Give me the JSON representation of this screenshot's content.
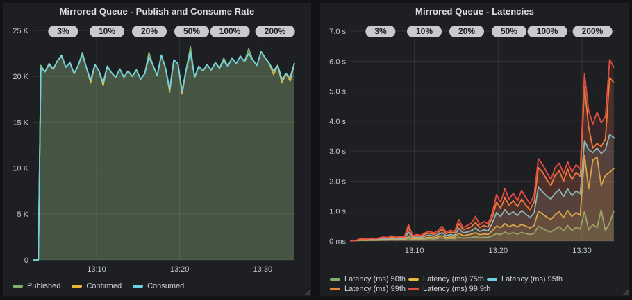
{
  "chart_data": [
    {
      "type": "area",
      "title": "Mirrored Queue - Publish and Consume Rate",
      "annotations": [
        "3%",
        "10%",
        "20%",
        "50%",
        "100%",
        "200%"
      ],
      "x_unit": "time of day (minutes after 13:00)",
      "y_unit": "messages per second",
      "xlim": [
        2.4,
        33.9
      ],
      "ylim": [
        0,
        25000
      ],
      "grid": true,
      "legend_position": "bottom",
      "xticks": [
        {
          "x": 10,
          "label": "13:10"
        },
        {
          "x": 20,
          "label": "13:20"
        },
        {
          "x": 30,
          "label": "13:30"
        }
      ],
      "yticks": [
        {
          "v": 0,
          "label": "0"
        },
        {
          "v": 5000,
          "label": "5 K"
        },
        {
          "v": 10000,
          "label": "10 K"
        },
        {
          "v": 15000,
          "label": "15 K"
        },
        {
          "v": 20000,
          "label": "20 K"
        },
        {
          "v": 25000,
          "label": "25 K"
        }
      ],
      "x": [
        2.4,
        3.0,
        3.3,
        3.8,
        4.3,
        4.8,
        5.3,
        5.8,
        6.3,
        6.8,
        7.3,
        7.8,
        8.3,
        8.8,
        9.3,
        9.8,
        10.3,
        10.8,
        11.3,
        11.8,
        12.3,
        12.8,
        13.3,
        13.8,
        14.3,
        14.8,
        15.3,
        15.8,
        16.3,
        16.8,
        17.3,
        17.8,
        18.3,
        18.8,
        19.3,
        19.8,
        20.3,
        20.8,
        21.3,
        21.8,
        22.3,
        22.8,
        23.3,
        23.8,
        24.3,
        24.8,
        25.3,
        25.8,
        26.3,
        26.8,
        27.3,
        27.8,
        28.3,
        28.8,
        29.3,
        29.8,
        30.3,
        30.8,
        31.3,
        31.8,
        32.3,
        32.8,
        33.3,
        33.8
      ],
      "series": [
        {
          "name": "Published",
          "color": "#7EB26D",
          "values": [
            0,
            0,
            21200,
            20500,
            21400,
            20800,
            21700,
            22300,
            21000,
            21500,
            20300,
            21200,
            22600,
            20900,
            19600,
            21300,
            20600,
            19300,
            21100,
            20400,
            19900,
            20800,
            19900,
            20600,
            20000,
            20700,
            19700,
            20300,
            22600,
            21200,
            20100,
            22300,
            20900,
            18600,
            21800,
            21400,
            18400,
            20800,
            23200,
            19900,
            21100,
            20600,
            21300,
            20700,
            21500,
            20900,
            22000,
            21100,
            22000,
            21400,
            22200,
            21600,
            23000,
            21800,
            21200,
            22700,
            22000,
            21400,
            20600,
            21200,
            19700,
            20300,
            19900,
            21400
          ]
        },
        {
          "name": "Confirmed",
          "color": "#EAB839",
          "values": [
            0,
            0,
            21000,
            20500,
            21300,
            20800,
            21700,
            22200,
            21000,
            21500,
            20300,
            21200,
            22400,
            20900,
            19300,
            21300,
            20600,
            19000,
            21100,
            20400,
            19900,
            20800,
            19900,
            20600,
            20000,
            20700,
            19700,
            20300,
            22100,
            21200,
            20100,
            22300,
            20900,
            18300,
            21800,
            21400,
            18100,
            20800,
            22600,
            19900,
            21100,
            20600,
            21300,
            20700,
            21500,
            20900,
            21700,
            21100,
            22000,
            21400,
            22200,
            21600,
            22500,
            21800,
            21200,
            22700,
            22000,
            21400,
            20200,
            21200,
            19300,
            20300,
            19500,
            21400
          ]
        },
        {
          "name": "Consumed",
          "color": "#6ED0E0",
          "values": [
            0,
            0,
            21000,
            20500,
            21400,
            20800,
            21700,
            22300,
            21000,
            21500,
            20300,
            21200,
            22400,
            20900,
            19600,
            21300,
            20600,
            19300,
            21100,
            20400,
            19900,
            20800,
            19900,
            20600,
            20000,
            20700,
            19700,
            20300,
            22100,
            21200,
            20100,
            22300,
            20900,
            18600,
            21800,
            21400,
            18400,
            20800,
            22600,
            19900,
            21100,
            20600,
            21300,
            20700,
            21500,
            20900,
            21700,
            21100,
            22000,
            21400,
            22200,
            21600,
            22500,
            21800,
            21200,
            22700,
            22000,
            21400,
            20600,
            21200,
            19700,
            20300,
            19900,
            21400
          ]
        }
      ]
    },
    {
      "type": "area",
      "title": "Mirrored Queue - Latencies",
      "annotations": [
        "3%",
        "10%",
        "20%",
        "50%",
        "100%",
        "200%"
      ],
      "x_unit": "time of day (minutes after 13:00)",
      "y_unit": "seconds",
      "xlim": [
        2.4,
        33.9
      ],
      "ylim": [
        0,
        7
      ],
      "grid": true,
      "legend_position": "bottom",
      "xticks": [
        {
          "x": 10,
          "label": "13:10"
        },
        {
          "x": 20,
          "label": "13:20"
        },
        {
          "x": 30,
          "label": "13:30"
        }
      ],
      "yticks": [
        {
          "v": 0,
          "label": "0 ms"
        },
        {
          "v": 1,
          "label": "1.0 s"
        },
        {
          "v": 2,
          "label": "2.0 s"
        },
        {
          "v": 3,
          "label": "3.0 s"
        },
        {
          "v": 4,
          "label": "4.0 s"
        },
        {
          "v": 5,
          "label": "5.0 s"
        },
        {
          "v": 6,
          "label": "6.0 s"
        },
        {
          "v": 7,
          "label": "7.0 s"
        }
      ],
      "x": [
        2.4,
        3.0,
        3.3,
        3.8,
        4.3,
        4.8,
        5.3,
        5.8,
        6.3,
        6.8,
        7.3,
        7.8,
        8.3,
        8.8,
        9.3,
        9.8,
        10.3,
        10.8,
        11.3,
        11.8,
        12.3,
        12.8,
        13.3,
        13.8,
        14.3,
        14.8,
        15.3,
        15.8,
        16.3,
        16.8,
        17.3,
        17.8,
        18.3,
        18.8,
        19.3,
        19.8,
        20.3,
        20.8,
        21.3,
        21.8,
        22.3,
        22.8,
        23.3,
        23.8,
        24.3,
        24.8,
        25.3,
        25.8,
        26.3,
        26.8,
        27.3,
        27.8,
        28.3,
        28.8,
        29.3,
        29.8,
        30.3,
        30.8,
        31.3,
        31.8,
        32.3,
        32.8,
        33.3,
        33.8
      ],
      "series": [
        {
          "name": "Latency (ms) 50th",
          "color": "#7EB26D",
          "values": [
            0.01,
            0.01,
            0.02,
            0.03,
            0.02,
            0.03,
            0.03,
            0.03,
            0.04,
            0.04,
            0.05,
            0.04,
            0.05,
            0.04,
            0.08,
            0.05,
            0.06,
            0.05,
            0.07,
            0.08,
            0.07,
            0.09,
            0.11,
            0.08,
            0.09,
            0.08,
            0.13,
            0.1,
            0.11,
            0.12,
            0.15,
            0.11,
            0.13,
            0.12,
            0.18,
            0.25,
            0.22,
            0.3,
            0.24,
            0.28,
            0.23,
            0.29,
            0.25,
            0.22,
            0.26,
            0.5,
            0.42,
            0.35,
            0.3,
            0.4,
            0.48,
            0.34,
            0.52,
            0.36,
            0.46,
            0.4,
            1.0,
            0.38,
            0.55,
            0.45,
            1.04,
            0.35,
            0.6,
            1.0
          ]
        },
        {
          "name": "Latency (ms) 75th",
          "color": "#EAB839",
          "values": [
            0.01,
            0.01,
            0.03,
            0.04,
            0.03,
            0.04,
            0.04,
            0.05,
            0.06,
            0.05,
            0.07,
            0.06,
            0.07,
            0.06,
            0.15,
            0.08,
            0.09,
            0.08,
            0.11,
            0.13,
            0.11,
            0.14,
            0.18,
            0.12,
            0.14,
            0.13,
            0.26,
            0.18,
            0.2,
            0.23,
            0.28,
            0.21,
            0.24,
            0.22,
            0.35,
            0.5,
            0.45,
            0.58,
            0.48,
            0.54,
            0.47,
            0.56,
            0.5,
            0.44,
            0.52,
            1.0,
            0.9,
            0.8,
            0.72,
            0.88,
            0.98,
            0.78,
            1.02,
            0.82,
            0.95,
            0.86,
            2.85,
            1.75,
            2.7,
            2.8,
            1.85,
            2.2,
            2.3,
            2.42
          ]
        },
        {
          "name": "Latency (ms) 95th",
          "color": "#6ED0E0",
          "values": [
            0.01,
            0.01,
            0.04,
            0.05,
            0.05,
            0.06,
            0.05,
            0.06,
            0.08,
            0.07,
            0.1,
            0.08,
            0.09,
            0.08,
            0.3,
            0.11,
            0.13,
            0.12,
            0.17,
            0.2,
            0.16,
            0.21,
            0.28,
            0.18,
            0.22,
            0.19,
            0.42,
            0.28,
            0.3,
            0.35,
            0.44,
            0.32,
            0.38,
            0.34,
            0.6,
            0.95,
            0.82,
            1.05,
            0.88,
            0.98,
            0.85,
            1.02,
            0.9,
            0.78,
            0.95,
            1.8,
            1.65,
            1.5,
            1.4,
            1.6,
            1.72,
            1.48,
            1.75,
            1.52,
            1.68,
            1.58,
            3.35,
            3.05,
            2.95,
            3.1,
            2.92,
            3.05,
            3.55,
            3.45
          ]
        },
        {
          "name": "Latency (ms) 99th",
          "color": "#EF843C",
          "values": [
            0.01,
            0.01,
            0.05,
            0.07,
            0.06,
            0.08,
            0.07,
            0.09,
            0.11,
            0.1,
            0.14,
            0.11,
            0.13,
            0.12,
            0.45,
            0.15,
            0.18,
            0.16,
            0.23,
            0.27,
            0.22,
            0.28,
            0.4,
            0.25,
            0.3,
            0.27,
            0.58,
            0.38,
            0.42,
            0.48,
            0.62,
            0.45,
            0.52,
            0.47,
            0.8,
            1.3,
            1.1,
            1.45,
            1.2,
            1.35,
            1.15,
            1.4,
            1.2,
            1.05,
            1.3,
            2.45,
            2.3,
            2.05,
            1.85,
            2.2,
            2.35,
            2.0,
            2.4,
            2.05,
            2.3,
            2.15,
            5.15,
            3.8,
            3.1,
            3.25,
            3.15,
            3.4,
            5.45,
            5.3
          ]
        },
        {
          "name": "Latency (ms) 99.9th",
          "color": "#E24D42",
          "values": [
            0.01,
            0.01,
            0.06,
            0.09,
            0.07,
            0.1,
            0.08,
            0.11,
            0.14,
            0.12,
            0.18,
            0.13,
            0.16,
            0.14,
            0.55,
            0.18,
            0.22,
            0.19,
            0.28,
            0.33,
            0.27,
            0.35,
            0.5,
            0.3,
            0.36,
            0.32,
            0.72,
            0.45,
            0.52,
            0.6,
            0.82,
            0.55,
            0.65,
            0.58,
            0.95,
            1.55,
            1.3,
            1.75,
            1.4,
            1.6,
            1.35,
            1.7,
            1.45,
            1.25,
            1.55,
            2.75,
            2.55,
            2.3,
            2.05,
            2.45,
            2.6,
            2.25,
            2.65,
            2.3,
            2.55,
            2.4,
            5.6,
            4.35,
            3.9,
            4.3,
            3.95,
            4.15,
            6.05,
            5.8
          ]
        }
      ]
    }
  ]
}
